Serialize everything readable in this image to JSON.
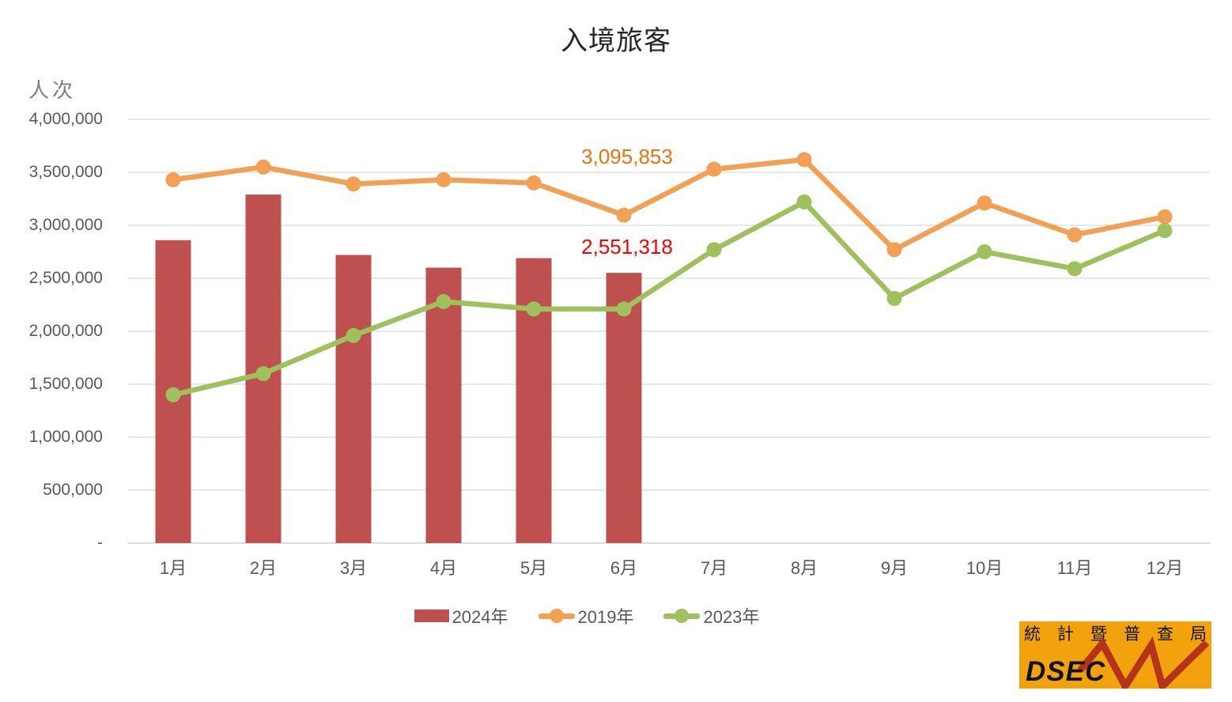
{
  "chart_data": {
    "type": "combo",
    "title": "入境旅客",
    "ylabel": "人次",
    "categories": [
      "1月",
      "2月",
      "3月",
      "4月",
      "5月",
      "6月",
      "7月",
      "8月",
      "9月",
      "10月",
      "11月",
      "12月"
    ],
    "ylim": [
      0,
      4000000
    ],
    "ytick_step": 500000,
    "ytick_labels": [
      "4,000,000",
      "3,500,000",
      "3,000,000",
      "2,500,000",
      "2,000,000",
      "1,500,000",
      "1,000,000",
      "500,000",
      "-"
    ],
    "grid": true,
    "legend_position": "bottom",
    "series": [
      {
        "name": "2024年",
        "type": "bar",
        "color": "#BE5150",
        "values": [
          2860000,
          3290000,
          2720000,
          2600000,
          2690000,
          2551318,
          null,
          null,
          null,
          null,
          null,
          null
        ]
      },
      {
        "name": "2019年",
        "type": "line",
        "color": "#F2A053",
        "values": [
          3430000,
          3550000,
          3390000,
          3430000,
          3400000,
          3095853,
          3530000,
          3620000,
          2770000,
          3210000,
          2910000,
          3080000
        ]
      },
      {
        "name": "2023年",
        "type": "line",
        "color": "#9EC15D",
        "values": [
          1400000,
          1600000,
          1960000,
          2280000,
          2210000,
          2210000,
          2770000,
          3220000,
          2310000,
          2750000,
          2590000,
          2950000
        ]
      }
    ],
    "annotations": [
      {
        "text": "3,095,853",
        "color": "#E8740C",
        "series_index": 1,
        "month_index": 5,
        "dy": -74
      },
      {
        "text": "2,551,318",
        "color": "#FF0000",
        "series_index": 0,
        "month_index": 5,
        "dy": -33
      }
    ]
  },
  "axis_colors": {
    "grid": "#D9D9D9",
    "axis_line": "#C6C6C6",
    "tick_text": "#595959"
  },
  "logo": {
    "agency_cn": "統計暨普查局",
    "acronym": "DSEC",
    "bg": "#F2A20D",
    "zigzag": "#B5331B",
    "text_color": "#111111"
  }
}
